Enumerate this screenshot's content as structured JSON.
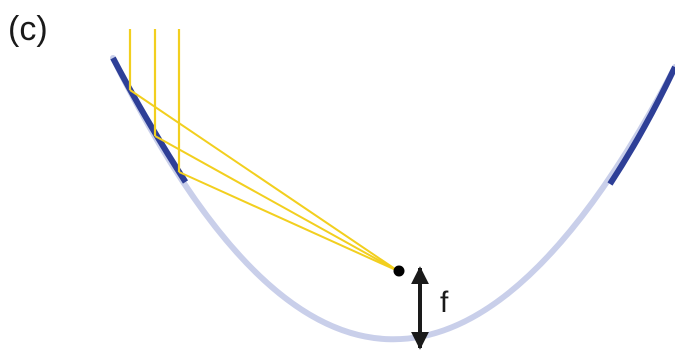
{
  "panel_label": "(c)",
  "focal_length_label": "f",
  "colors": {
    "mirror_full": "#c9cfea",
    "mirror_active": "#2e3f97",
    "rays": "#f2cf1f",
    "focus": "#000000",
    "arrow": "#1a1a1a"
  }
}
